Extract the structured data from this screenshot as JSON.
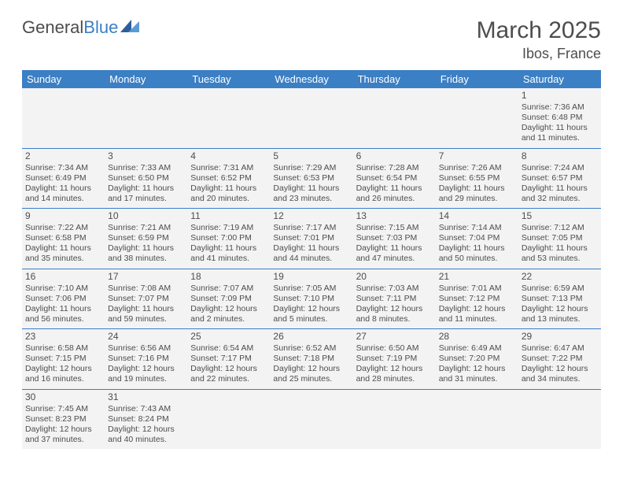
{
  "logo": {
    "part1": "General",
    "part2": "Blue"
  },
  "title": "March 2025",
  "location": "Ibos, France",
  "colors": {
    "header_bg": "#3b7fc4",
    "header_text": "#ffffff",
    "cell_bg": "#f3f3f3",
    "border": "#3b7fc4",
    "text": "#4d4d4d"
  },
  "weekdays": [
    "Sunday",
    "Monday",
    "Tuesday",
    "Wednesday",
    "Thursday",
    "Friday",
    "Saturday"
  ],
  "weeks": [
    [
      null,
      null,
      null,
      null,
      null,
      null,
      {
        "n": "1",
        "sr": "Sunrise: 7:36 AM",
        "ss": "Sunset: 6:48 PM",
        "d1": "Daylight: 11 hours",
        "d2": "and 11 minutes."
      }
    ],
    [
      {
        "n": "2",
        "sr": "Sunrise: 7:34 AM",
        "ss": "Sunset: 6:49 PM",
        "d1": "Daylight: 11 hours",
        "d2": "and 14 minutes."
      },
      {
        "n": "3",
        "sr": "Sunrise: 7:33 AM",
        "ss": "Sunset: 6:50 PM",
        "d1": "Daylight: 11 hours",
        "d2": "and 17 minutes."
      },
      {
        "n": "4",
        "sr": "Sunrise: 7:31 AM",
        "ss": "Sunset: 6:52 PM",
        "d1": "Daylight: 11 hours",
        "d2": "and 20 minutes."
      },
      {
        "n": "5",
        "sr": "Sunrise: 7:29 AM",
        "ss": "Sunset: 6:53 PM",
        "d1": "Daylight: 11 hours",
        "d2": "and 23 minutes."
      },
      {
        "n": "6",
        "sr": "Sunrise: 7:28 AM",
        "ss": "Sunset: 6:54 PM",
        "d1": "Daylight: 11 hours",
        "d2": "and 26 minutes."
      },
      {
        "n": "7",
        "sr": "Sunrise: 7:26 AM",
        "ss": "Sunset: 6:55 PM",
        "d1": "Daylight: 11 hours",
        "d2": "and 29 minutes."
      },
      {
        "n": "8",
        "sr": "Sunrise: 7:24 AM",
        "ss": "Sunset: 6:57 PM",
        "d1": "Daylight: 11 hours",
        "d2": "and 32 minutes."
      }
    ],
    [
      {
        "n": "9",
        "sr": "Sunrise: 7:22 AM",
        "ss": "Sunset: 6:58 PM",
        "d1": "Daylight: 11 hours",
        "d2": "and 35 minutes."
      },
      {
        "n": "10",
        "sr": "Sunrise: 7:21 AM",
        "ss": "Sunset: 6:59 PM",
        "d1": "Daylight: 11 hours",
        "d2": "and 38 minutes."
      },
      {
        "n": "11",
        "sr": "Sunrise: 7:19 AM",
        "ss": "Sunset: 7:00 PM",
        "d1": "Daylight: 11 hours",
        "d2": "and 41 minutes."
      },
      {
        "n": "12",
        "sr": "Sunrise: 7:17 AM",
        "ss": "Sunset: 7:01 PM",
        "d1": "Daylight: 11 hours",
        "d2": "and 44 minutes."
      },
      {
        "n": "13",
        "sr": "Sunrise: 7:15 AM",
        "ss": "Sunset: 7:03 PM",
        "d1": "Daylight: 11 hours",
        "d2": "and 47 minutes."
      },
      {
        "n": "14",
        "sr": "Sunrise: 7:14 AM",
        "ss": "Sunset: 7:04 PM",
        "d1": "Daylight: 11 hours",
        "d2": "and 50 minutes."
      },
      {
        "n": "15",
        "sr": "Sunrise: 7:12 AM",
        "ss": "Sunset: 7:05 PM",
        "d1": "Daylight: 11 hours",
        "d2": "and 53 minutes."
      }
    ],
    [
      {
        "n": "16",
        "sr": "Sunrise: 7:10 AM",
        "ss": "Sunset: 7:06 PM",
        "d1": "Daylight: 11 hours",
        "d2": "and 56 minutes."
      },
      {
        "n": "17",
        "sr": "Sunrise: 7:08 AM",
        "ss": "Sunset: 7:07 PM",
        "d1": "Daylight: 11 hours",
        "d2": "and 59 minutes."
      },
      {
        "n": "18",
        "sr": "Sunrise: 7:07 AM",
        "ss": "Sunset: 7:09 PM",
        "d1": "Daylight: 12 hours",
        "d2": "and 2 minutes."
      },
      {
        "n": "19",
        "sr": "Sunrise: 7:05 AM",
        "ss": "Sunset: 7:10 PM",
        "d1": "Daylight: 12 hours",
        "d2": "and 5 minutes."
      },
      {
        "n": "20",
        "sr": "Sunrise: 7:03 AM",
        "ss": "Sunset: 7:11 PM",
        "d1": "Daylight: 12 hours",
        "d2": "and 8 minutes."
      },
      {
        "n": "21",
        "sr": "Sunrise: 7:01 AM",
        "ss": "Sunset: 7:12 PM",
        "d1": "Daylight: 12 hours",
        "d2": "and 11 minutes."
      },
      {
        "n": "22",
        "sr": "Sunrise: 6:59 AM",
        "ss": "Sunset: 7:13 PM",
        "d1": "Daylight: 12 hours",
        "d2": "and 13 minutes."
      }
    ],
    [
      {
        "n": "23",
        "sr": "Sunrise: 6:58 AM",
        "ss": "Sunset: 7:15 PM",
        "d1": "Daylight: 12 hours",
        "d2": "and 16 minutes."
      },
      {
        "n": "24",
        "sr": "Sunrise: 6:56 AM",
        "ss": "Sunset: 7:16 PM",
        "d1": "Daylight: 12 hours",
        "d2": "and 19 minutes."
      },
      {
        "n": "25",
        "sr": "Sunrise: 6:54 AM",
        "ss": "Sunset: 7:17 PM",
        "d1": "Daylight: 12 hours",
        "d2": "and 22 minutes."
      },
      {
        "n": "26",
        "sr": "Sunrise: 6:52 AM",
        "ss": "Sunset: 7:18 PM",
        "d1": "Daylight: 12 hours",
        "d2": "and 25 minutes."
      },
      {
        "n": "27",
        "sr": "Sunrise: 6:50 AM",
        "ss": "Sunset: 7:19 PM",
        "d1": "Daylight: 12 hours",
        "d2": "and 28 minutes."
      },
      {
        "n": "28",
        "sr": "Sunrise: 6:49 AM",
        "ss": "Sunset: 7:20 PM",
        "d1": "Daylight: 12 hours",
        "d2": "and 31 minutes."
      },
      {
        "n": "29",
        "sr": "Sunrise: 6:47 AM",
        "ss": "Sunset: 7:22 PM",
        "d1": "Daylight: 12 hours",
        "d2": "and 34 minutes."
      }
    ],
    [
      {
        "n": "30",
        "sr": "Sunrise: 7:45 AM",
        "ss": "Sunset: 8:23 PM",
        "d1": "Daylight: 12 hours",
        "d2": "and 37 minutes."
      },
      {
        "n": "31",
        "sr": "Sunrise: 7:43 AM",
        "ss": "Sunset: 8:24 PM",
        "d1": "Daylight: 12 hours",
        "d2": "and 40 minutes."
      },
      null,
      null,
      null,
      null,
      null
    ]
  ]
}
